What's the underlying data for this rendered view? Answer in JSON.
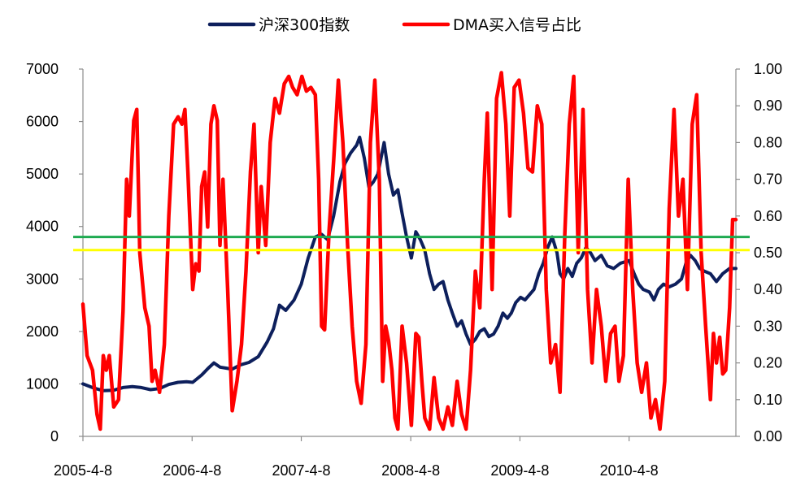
{
  "chart_data": {
    "type": "line",
    "legend": {
      "placement": "top-center",
      "entries": [
        {
          "name": "沪深300指数",
          "color": "#0d1f5c"
        },
        {
          "name": "DMA买入信号占比",
          "color": "#ff0000"
        }
      ]
    },
    "x_axis": {
      "start": "2005-4-8",
      "end": "2011-3-31",
      "tick_labels": [
        "2005-4-8",
        "2006-4-8",
        "2007-4-8",
        "2008-4-8",
        "2009-4-8",
        "2010-4-8"
      ]
    },
    "y_left": {
      "min": 0,
      "max": 7000,
      "tick_labels": [
        "0",
        "1000",
        "2000",
        "3000",
        "4000",
        "5000",
        "6000",
        "7000"
      ]
    },
    "y_right": {
      "min": 0,
      "max": 1.0,
      "tick_labels": [
        "0.00",
        "0.10",
        "0.20",
        "0.30",
        "0.40",
        "0.50",
        "0.60",
        "0.70",
        "0.80",
        "0.90",
        "1.00"
      ]
    },
    "grid": false,
    "series": [
      {
        "name": "沪深300指数",
        "axis": "left",
        "color": "#0d1f5c",
        "points": [
          [
            "2005-4-8",
            1000
          ],
          [
            "2005-5-15",
            920
          ],
          [
            "2005-6-15",
            870
          ],
          [
            "2005-7-20",
            880
          ],
          [
            "2005-8-20",
            930
          ],
          [
            "2005-9-20",
            950
          ],
          [
            "2005-10-20",
            930
          ],
          [
            "2005-11-20",
            890
          ],
          [
            "2005-12-20",
            910
          ],
          [
            "2006-1-20",
            990
          ],
          [
            "2006-2-20",
            1030
          ],
          [
            "2006-3-20",
            1040
          ],
          [
            "2006-4-10",
            1030
          ],
          [
            "2006-5-10",
            1170
          ],
          [
            "2006-6-1",
            1300
          ],
          [
            "2006-6-20",
            1400
          ],
          [
            "2006-7-10",
            1320
          ],
          [
            "2006-8-1",
            1300
          ],
          [
            "2006-8-20",
            1280
          ],
          [
            "2006-9-15",
            1360
          ],
          [
            "2006-10-15",
            1410
          ],
          [
            "2006-11-15",
            1520
          ],
          [
            "2006-12-15",
            1800
          ],
          [
            "2007-1-5",
            2050
          ],
          [
            "2007-1-25",
            2500
          ],
          [
            "2007-2-15",
            2400
          ],
          [
            "2007-3-15",
            2600
          ],
          [
            "2007-4-8",
            2900
          ],
          [
            "2007-5-1",
            3400
          ],
          [
            "2007-5-25",
            3800
          ],
          [
            "2007-6-15",
            3850
          ],
          [
            "2007-7-5",
            3750
          ],
          [
            "2007-7-25",
            4200
          ],
          [
            "2007-8-15",
            4850
          ],
          [
            "2007-9-1",
            5200
          ],
          [
            "2007-9-20",
            5400
          ],
          [
            "2007-10-10",
            5550
          ],
          [
            "2007-10-20",
            5700
          ],
          [
            "2007-11-5",
            5300
          ],
          [
            "2007-11-20",
            4750
          ],
          [
            "2007-12-5",
            4850
          ],
          [
            "2007-12-20",
            5000
          ],
          [
            "2008-1-10",
            5600
          ],
          [
            "2008-1-25",
            5000
          ],
          [
            "2008-2-10",
            4600
          ],
          [
            "2008-2-25",
            4700
          ],
          [
            "2008-3-10",
            4250
          ],
          [
            "2008-3-25",
            3800
          ],
          [
            "2008-4-10",
            3400
          ],
          [
            "2008-4-25",
            3900
          ],
          [
            "2008-5-10",
            3750
          ],
          [
            "2008-5-25",
            3550
          ],
          [
            "2008-6-10",
            3100
          ],
          [
            "2008-6-25",
            2800
          ],
          [
            "2008-7-10",
            2900
          ],
          [
            "2008-7-25",
            2950
          ],
          [
            "2008-8-10",
            2600
          ],
          [
            "2008-8-25",
            2350
          ],
          [
            "2008-9-10",
            2100
          ],
          [
            "2008-9-25",
            2200
          ],
          [
            "2008-10-10",
            1950
          ],
          [
            "2008-10-25",
            1750
          ],
          [
            "2008-11-10",
            1850
          ],
          [
            "2008-11-25",
            2000
          ],
          [
            "2008-12-10",
            2050
          ],
          [
            "2008-12-25",
            1900
          ],
          [
            "2009-1-10",
            1950
          ],
          [
            "2009-1-25",
            2100
          ],
          [
            "2009-2-10",
            2350
          ],
          [
            "2009-2-25",
            2250
          ],
          [
            "2009-3-10",
            2350
          ],
          [
            "2009-3-25",
            2550
          ],
          [
            "2009-4-10",
            2650
          ],
          [
            "2009-4-25",
            2600
          ],
          [
            "2009-5-10",
            2700
          ],
          [
            "2009-5-25",
            2800
          ],
          [
            "2009-6-10",
            3100
          ],
          [
            "2009-6-25",
            3300
          ],
          [
            "2009-7-10",
            3600
          ],
          [
            "2009-7-25",
            3800
          ],
          [
            "2009-8-10",
            3500
          ],
          [
            "2009-8-20",
            3100
          ],
          [
            "2009-9-1",
            3000
          ],
          [
            "2009-9-15",
            3200
          ],
          [
            "2009-9-30",
            3050
          ],
          [
            "2009-10-15",
            3300
          ],
          [
            "2009-10-30",
            3400
          ],
          [
            "2009-11-15",
            3600
          ],
          [
            "2009-11-30",
            3500
          ],
          [
            "2009-12-15",
            3350
          ],
          [
            "2010-1-5",
            3450
          ],
          [
            "2010-1-25",
            3250
          ],
          [
            "2010-2-15",
            3200
          ],
          [
            "2010-3-10",
            3300
          ],
          [
            "2010-4-8",
            3350
          ],
          [
            "2010-4-25",
            3100
          ],
          [
            "2010-5-10",
            2900
          ],
          [
            "2010-5-25",
            2800
          ],
          [
            "2010-6-15",
            2750
          ],
          [
            "2010-6-30",
            2600
          ],
          [
            "2010-7-15",
            2800
          ],
          [
            "2010-8-1",
            2900
          ],
          [
            "2010-8-20",
            2850
          ],
          [
            "2010-9-10",
            2900
          ],
          [
            "2010-9-30",
            3000
          ],
          [
            "2010-10-15",
            3300
          ],
          [
            "2010-10-30",
            3450
          ],
          [
            "2010-11-15",
            3350
          ],
          [
            "2010-11-30",
            3200
          ],
          [
            "2010-12-15",
            3150
          ],
          [
            "2011-1-5",
            3100
          ],
          [
            "2011-1-25",
            2950
          ],
          [
            "2011-2-15",
            3100
          ],
          [
            "2011-3-10",
            3200
          ],
          [
            "2011-3-31",
            3200
          ]
        ]
      },
      {
        "name": "DMA买入信号占比",
        "axis": "right",
        "color": "#ff0000",
        "points": [
          [
            "2005-4-8",
            0.36
          ],
          [
            "2005-4-22",
            0.22
          ],
          [
            "2005-5-10",
            0.18
          ],
          [
            "2005-5-25",
            0.06
          ],
          [
            "2005-6-5",
            0.02
          ],
          [
            "2005-6-15",
            0.22
          ],
          [
            "2005-6-25",
            0.18
          ],
          [
            "2005-7-5",
            0.22
          ],
          [
            "2005-7-20",
            0.08
          ],
          [
            "2005-8-5",
            0.1
          ],
          [
            "2005-8-20",
            0.34
          ],
          [
            "2005-9-1",
            0.7
          ],
          [
            "2005-9-10",
            0.6
          ],
          [
            "2005-9-25",
            0.86
          ],
          [
            "2005-10-5",
            0.89
          ],
          [
            "2005-10-15",
            0.5
          ],
          [
            "2005-11-1",
            0.35
          ],
          [
            "2005-11-15",
            0.3
          ],
          [
            "2005-11-25",
            0.15
          ],
          [
            "2005-12-5",
            0.18
          ],
          [
            "2005-12-20",
            0.12
          ],
          [
            "2006-1-5",
            0.25
          ],
          [
            "2006-1-20",
            0.6
          ],
          [
            "2006-2-5",
            0.85
          ],
          [
            "2006-2-20",
            0.87
          ],
          [
            "2006-3-5",
            0.85
          ],
          [
            "2006-3-15",
            0.89
          ],
          [
            "2006-3-25",
            0.72
          ],
          [
            "2006-4-10",
            0.4
          ],
          [
            "2006-4-20",
            0.47
          ],
          [
            "2006-5-1",
            0.45
          ],
          [
            "2006-5-10",
            0.68
          ],
          [
            "2006-5-20",
            0.72
          ],
          [
            "2006-5-30",
            0.57
          ],
          [
            "2006-6-10",
            0.85
          ],
          [
            "2006-6-20",
            0.9
          ],
          [
            "2006-7-1",
            0.86
          ],
          [
            "2006-7-10",
            0.52
          ],
          [
            "2006-7-20",
            0.7
          ],
          [
            "2006-8-5",
            0.4
          ],
          [
            "2006-8-20",
            0.07
          ],
          [
            "2006-9-5",
            0.15
          ],
          [
            "2006-9-20",
            0.25
          ],
          [
            "2006-10-5",
            0.45
          ],
          [
            "2006-10-20",
            0.72
          ],
          [
            "2006-11-1",
            0.85
          ],
          [
            "2006-11-15",
            0.5
          ],
          [
            "2006-11-25",
            0.68
          ],
          [
            "2006-12-10",
            0.52
          ],
          [
            "2006-12-25",
            0.8
          ],
          [
            "2007-1-10",
            0.92
          ],
          [
            "2007-1-25",
            0.88
          ],
          [
            "2007-2-10",
            0.96
          ],
          [
            "2007-2-25",
            0.98
          ],
          [
            "2007-3-10",
            0.95
          ],
          [
            "2007-3-25",
            0.93
          ],
          [
            "2007-4-10",
            0.98
          ],
          [
            "2007-4-25",
            0.94
          ],
          [
            "2007-5-10",
            0.95
          ],
          [
            "2007-5-25",
            0.93
          ],
          [
            "2007-6-5",
            0.7
          ],
          [
            "2007-6-15",
            0.3
          ],
          [
            "2007-6-25",
            0.29
          ],
          [
            "2007-7-10",
            0.56
          ],
          [
            "2007-7-25",
            0.75
          ],
          [
            "2007-8-10",
            0.97
          ],
          [
            "2007-8-25",
            0.8
          ],
          [
            "2007-9-10",
            0.52
          ],
          [
            "2007-9-25",
            0.3
          ],
          [
            "2007-10-10",
            0.15
          ],
          [
            "2007-10-25",
            0.09
          ],
          [
            "2007-11-10",
            0.25
          ],
          [
            "2007-11-25",
            0.8
          ],
          [
            "2007-12-10",
            0.97
          ],
          [
            "2007-12-25",
            0.7
          ],
          [
            "2008-1-5",
            0.15
          ],
          [
            "2008-1-15",
            0.3
          ],
          [
            "2008-1-25",
            0.26
          ],
          [
            "2008-2-5",
            0.18
          ],
          [
            "2008-2-15",
            0.05
          ],
          [
            "2008-2-25",
            0.02
          ],
          [
            "2008-3-10",
            0.3
          ],
          [
            "2008-3-25",
            0.2
          ],
          [
            "2008-4-10",
            0.03
          ],
          [
            "2008-4-25",
            0.28
          ],
          [
            "2008-5-5",
            0.27
          ],
          [
            "2008-5-15",
            0.15
          ],
          [
            "2008-5-25",
            0.05
          ],
          [
            "2008-6-10",
            0.02
          ],
          [
            "2008-6-25",
            0.16
          ],
          [
            "2008-7-10",
            0.05
          ],
          [
            "2008-7-25",
            0.02
          ],
          [
            "2008-8-10",
            0.08
          ],
          [
            "2008-8-25",
            0.03
          ],
          [
            "2008-9-10",
            0.15
          ],
          [
            "2008-9-25",
            0.06
          ],
          [
            "2008-10-10",
            0.02
          ],
          [
            "2008-10-25",
            0.18
          ],
          [
            "2008-11-10",
            0.45
          ],
          [
            "2008-11-25",
            0.35
          ],
          [
            "2008-12-10",
            0.7
          ],
          [
            "2008-12-20",
            0.88
          ],
          [
            "2009-1-5",
            0.4
          ],
          [
            "2009-1-20",
            0.92
          ],
          [
            "2009-2-5",
            0.99
          ],
          [
            "2009-2-20",
            0.85
          ],
          [
            "2009-3-5",
            0.6
          ],
          [
            "2009-3-20",
            0.95
          ],
          [
            "2009-4-5",
            0.97
          ],
          [
            "2009-4-20",
            0.88
          ],
          [
            "2009-5-5",
            0.73
          ],
          [
            "2009-5-20",
            0.72
          ],
          [
            "2009-6-5",
            0.9
          ],
          [
            "2009-6-20",
            0.85
          ],
          [
            "2009-7-5",
            0.4
          ],
          [
            "2009-7-20",
            0.2
          ],
          [
            "2009-8-5",
            0.25
          ],
          [
            "2009-8-20",
            0.12
          ],
          [
            "2009-9-5",
            0.55
          ],
          [
            "2009-9-20",
            0.85
          ],
          [
            "2009-10-5",
            0.98
          ],
          [
            "2009-10-20",
            0.5
          ],
          [
            "2009-11-5",
            0.89
          ],
          [
            "2009-11-20",
            0.4
          ],
          [
            "2009-12-5",
            0.2
          ],
          [
            "2009-12-20",
            0.4
          ],
          [
            "2010-1-5",
            0.3
          ],
          [
            "2010-1-20",
            0.15
          ],
          [
            "2010-2-5",
            0.28
          ],
          [
            "2010-2-20",
            0.3
          ],
          [
            "2010-3-5",
            0.15
          ],
          [
            "2010-3-20",
            0.22
          ],
          [
            "2010-4-5",
            0.7
          ],
          [
            "2010-4-20",
            0.4
          ],
          [
            "2010-5-5",
            0.2
          ],
          [
            "2010-5-20",
            0.12
          ],
          [
            "2010-6-5",
            0.2
          ],
          [
            "2010-6-20",
            0.05
          ],
          [
            "2010-7-5",
            0.1
          ],
          [
            "2010-7-20",
            0.02
          ],
          [
            "2010-8-5",
            0.15
          ],
          [
            "2010-8-20",
            0.62
          ],
          [
            "2010-9-5",
            0.89
          ],
          [
            "2010-9-20",
            0.6
          ],
          [
            "2010-10-5",
            0.7
          ],
          [
            "2010-10-20",
            0.4
          ],
          [
            "2010-11-5",
            0.85
          ],
          [
            "2010-11-20",
            0.93
          ],
          [
            "2010-12-5",
            0.5
          ],
          [
            "2010-12-20",
            0.3
          ],
          [
            "2011-1-5",
            0.1
          ],
          [
            "2011-1-15",
            0.28
          ],
          [
            "2011-1-25",
            0.2
          ],
          [
            "2011-2-5",
            0.27
          ],
          [
            "2011-2-15",
            0.17
          ],
          [
            "2011-2-25",
            0.18
          ],
          [
            "2011-3-10",
            0.35
          ],
          [
            "2011-3-20",
            0.59
          ],
          [
            "2011-3-31",
            0.59
          ]
        ]
      }
    ],
    "reference_lines": [
      {
        "axis": "left",
        "value": 3800,
        "color": "#1eaa50"
      },
      {
        "axis": "left",
        "value": 3550,
        "color": "#ffff00"
      }
    ]
  }
}
